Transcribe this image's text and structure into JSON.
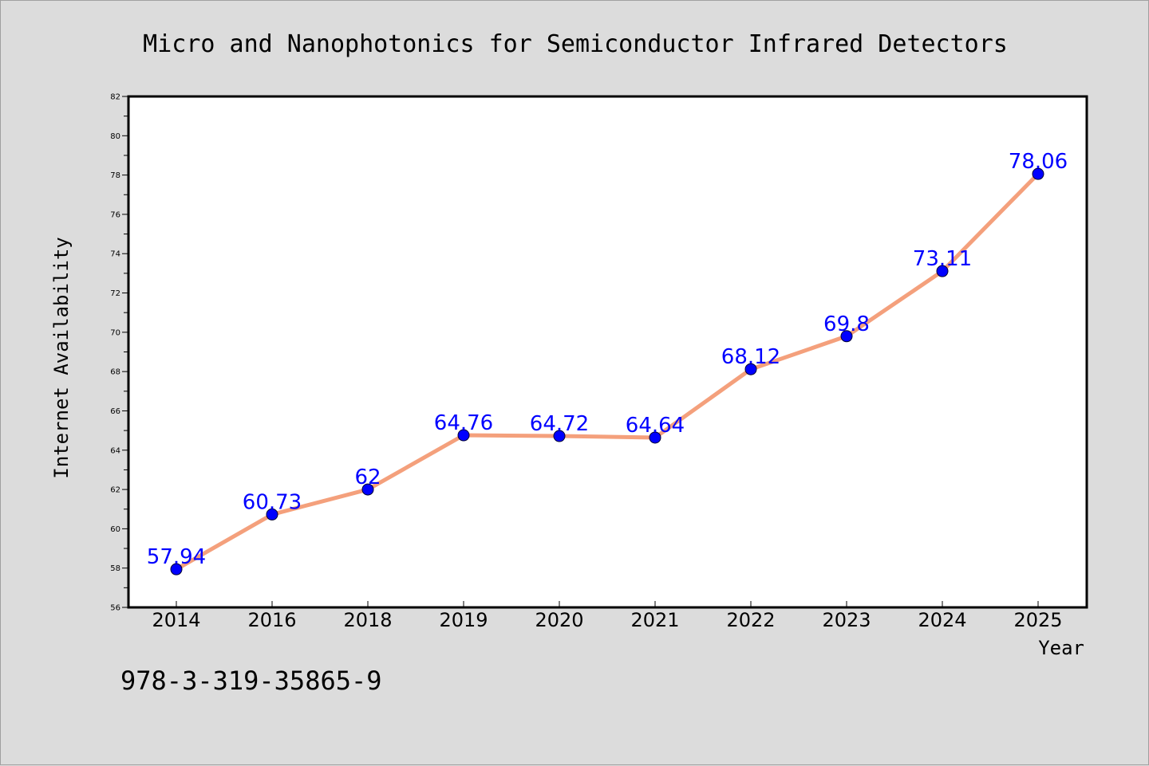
{
  "footer_text": "978-3-319-35865-9",
  "colors": {
    "line": "#f4a07c",
    "marker": "#0000ff",
    "label": "#0000ff",
    "background": "#dcdcdc",
    "plot_background": "#ffffff"
  },
  "chart_data": {
    "type": "line",
    "title": "Micro and Nanophotonics for Semiconductor Infrared Detectors",
    "xlabel": "Year",
    "ylabel": "Internet Availability",
    "categories": [
      "2014",
      "2016",
      "2018",
      "2019",
      "2020",
      "2021",
      "2022",
      "2023",
      "2024",
      "2025"
    ],
    "values": [
      57.94,
      60.73,
      62,
      64.76,
      64.72,
      64.64,
      68.12,
      69.8,
      73.11,
      78.06
    ],
    "data_labels": [
      "57.94",
      "60.73",
      "62",
      "64.76",
      "64.72",
      "64.64",
      "68.12",
      "69.8",
      "73.11",
      "78.06"
    ],
    "ylim": [
      56,
      82
    ],
    "yticks": [
      "56",
      "58",
      "60",
      "62",
      "64",
      "66",
      "68",
      "70",
      "72",
      "74",
      "76",
      "78",
      "80",
      "82"
    ],
    "grid": false,
    "legend": "none"
  }
}
